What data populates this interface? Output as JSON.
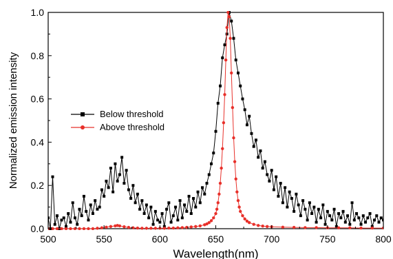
{
  "chart_data": {
    "type": "line",
    "xlabel": "Wavelength(nm)",
    "ylabel": "Normalized emission intensity",
    "xlim": [
      500,
      800
    ],
    "ylim": [
      0.0,
      1.0
    ],
    "xticks": [
      500,
      550,
      600,
      650,
      700,
      750,
      800
    ],
    "xtick_labels": [
      "500",
      "550",
      "600",
      "650",
      "700",
      "750",
      "800"
    ],
    "yticks": [
      0.0,
      0.2,
      0.4,
      0.6,
      0.8,
      1.0
    ],
    "ytick_labels": [
      "0.0",
      "0.2",
      "0.4",
      "0.6",
      "0.8",
      "1.0"
    ],
    "grid": false,
    "legend_position": "center-left",
    "series": [
      {
        "name": "Below threshold",
        "color": "#000000",
        "marker": "square",
        "x": [
          500,
          502,
          504,
          506,
          508,
          510,
          512,
          514,
          516,
          518,
          520,
          522,
          524,
          526,
          528,
          530,
          532,
          534,
          536,
          538,
          540,
          542,
          544,
          546,
          548,
          550,
          552,
          554,
          556,
          558,
          560,
          562,
          564,
          566,
          568,
          570,
          572,
          574,
          576,
          578,
          580,
          582,
          584,
          586,
          588,
          590,
          592,
          594,
          596,
          598,
          600,
          602,
          604,
          606,
          608,
          610,
          612,
          614,
          616,
          618,
          620,
          622,
          624,
          626,
          628,
          630,
          632,
          634,
          636,
          638,
          640,
          642,
          644,
          646,
          648,
          650,
          652,
          654,
          656,
          658,
          660,
          662,
          664,
          666,
          668,
          670,
          672,
          674,
          676,
          678,
          680,
          682,
          684,
          686,
          688,
          690,
          692,
          694,
          696,
          698,
          700,
          702,
          704,
          706,
          708,
          710,
          712,
          714,
          716,
          718,
          720,
          722,
          724,
          726,
          728,
          730,
          732,
          734,
          736,
          738,
          740,
          742,
          744,
          746,
          748,
          750,
          752,
          754,
          756,
          758,
          760,
          762,
          764,
          766,
          768,
          770,
          772,
          774,
          776,
          778,
          780,
          782,
          784,
          786,
          788,
          790,
          792,
          794,
          796,
          798,
          800
        ],
        "values": [
          0.05,
          0.0,
          0.24,
          0.02,
          0.06,
          0.0,
          0.04,
          0.05,
          0.01,
          0.07,
          0.03,
          0.12,
          0.05,
          0.02,
          0.09,
          0.06,
          0.15,
          0.08,
          0.04,
          0.11,
          0.07,
          0.13,
          0.09,
          0.1,
          0.18,
          0.15,
          0.22,
          0.19,
          0.28,
          0.17,
          0.3,
          0.22,
          0.25,
          0.33,
          0.21,
          0.27,
          0.18,
          0.14,
          0.2,
          0.12,
          0.16,
          0.09,
          0.13,
          0.07,
          0.11,
          0.05,
          0.1,
          0.02,
          0.08,
          0.04,
          0.03,
          0.07,
          0.01,
          0.09,
          0.12,
          0.03,
          0.06,
          0.1,
          0.04,
          0.13,
          0.05,
          0.11,
          0.08,
          0.15,
          0.07,
          0.14,
          0.1,
          0.17,
          0.12,
          0.19,
          0.16,
          0.21,
          0.25,
          0.3,
          0.35,
          0.45,
          0.58,
          0.66,
          0.79,
          0.85,
          0.9,
          1.0,
          0.96,
          0.88,
          0.78,
          0.72,
          0.66,
          0.6,
          0.55,
          0.48,
          0.52,
          0.44,
          0.38,
          0.41,
          0.33,
          0.36,
          0.28,
          0.31,
          0.25,
          0.22,
          0.27,
          0.18,
          0.24,
          0.15,
          0.21,
          0.12,
          0.19,
          0.1,
          0.17,
          0.14,
          0.08,
          0.16,
          0.11,
          0.06,
          0.13,
          0.09,
          0.04,
          0.12,
          0.07,
          0.1,
          0.03,
          0.09,
          0.05,
          0.11,
          0.02,
          0.08,
          0.06,
          0.04,
          0.09,
          0.01,
          0.07,
          0.05,
          0.08,
          0.03,
          0.06,
          0.02,
          0.12,
          0.04,
          0.07,
          0.05,
          0.02,
          0.06,
          0.03,
          0.05,
          0.07,
          0.01,
          0.04,
          0.06,
          0.03,
          0.05,
          0.04
        ]
      },
      {
        "name": "Above threshold",
        "color": "#e8302a",
        "marker": "circle",
        "x": [
          500,
          504,
          508,
          512,
          516,
          520,
          524,
          528,
          532,
          536,
          540,
          544,
          548,
          552,
          556,
          560,
          562,
          564,
          568,
          572,
          576,
          580,
          584,
          588,
          592,
          596,
          600,
          604,
          608,
          612,
          616,
          620,
          624,
          628,
          632,
          636,
          640,
          642,
          644,
          646,
          648,
          650,
          651,
          652,
          653,
          654,
          655,
          656,
          657,
          658,
          659,
          660,
          661,
          662,
          663,
          664,
          665,
          666,
          667,
          668,
          669,
          670,
          671,
          672,
          674,
          676,
          678,
          680,
          684,
          688,
          692,
          696,
          700,
          710,
          720,
          730,
          740,
          750,
          760,
          770,
          780,
          790,
          800
        ],
        "values": [
          0.0,
          0.0,
          0.0,
          0.0,
          0.0,
          0.0,
          0.0,
          0.0,
          0.0,
          0.0,
          0.0,
          0.002,
          0.004,
          0.007,
          0.01,
          0.013,
          0.015,
          0.013,
          0.009,
          0.006,
          0.004,
          0.003,
          0.002,
          0.002,
          0.002,
          0.002,
          0.002,
          0.002,
          0.003,
          0.003,
          0.004,
          0.005,
          0.006,
          0.008,
          0.01,
          0.013,
          0.018,
          0.022,
          0.028,
          0.037,
          0.05,
          0.07,
          0.09,
          0.12,
          0.16,
          0.21,
          0.28,
          0.37,
          0.49,
          0.62,
          0.78,
          0.93,
          1.0,
          0.98,
          0.88,
          0.72,
          0.56,
          0.42,
          0.31,
          0.23,
          0.17,
          0.13,
          0.1,
          0.08,
          0.06,
          0.045,
          0.035,
          0.028,
          0.02,
          0.015,
          0.012,
          0.01,
          0.009,
          0.007,
          0.006,
          0.005,
          0.005,
          0.004,
          0.004,
          0.004,
          0.003,
          0.003,
          0.003
        ]
      }
    ]
  }
}
